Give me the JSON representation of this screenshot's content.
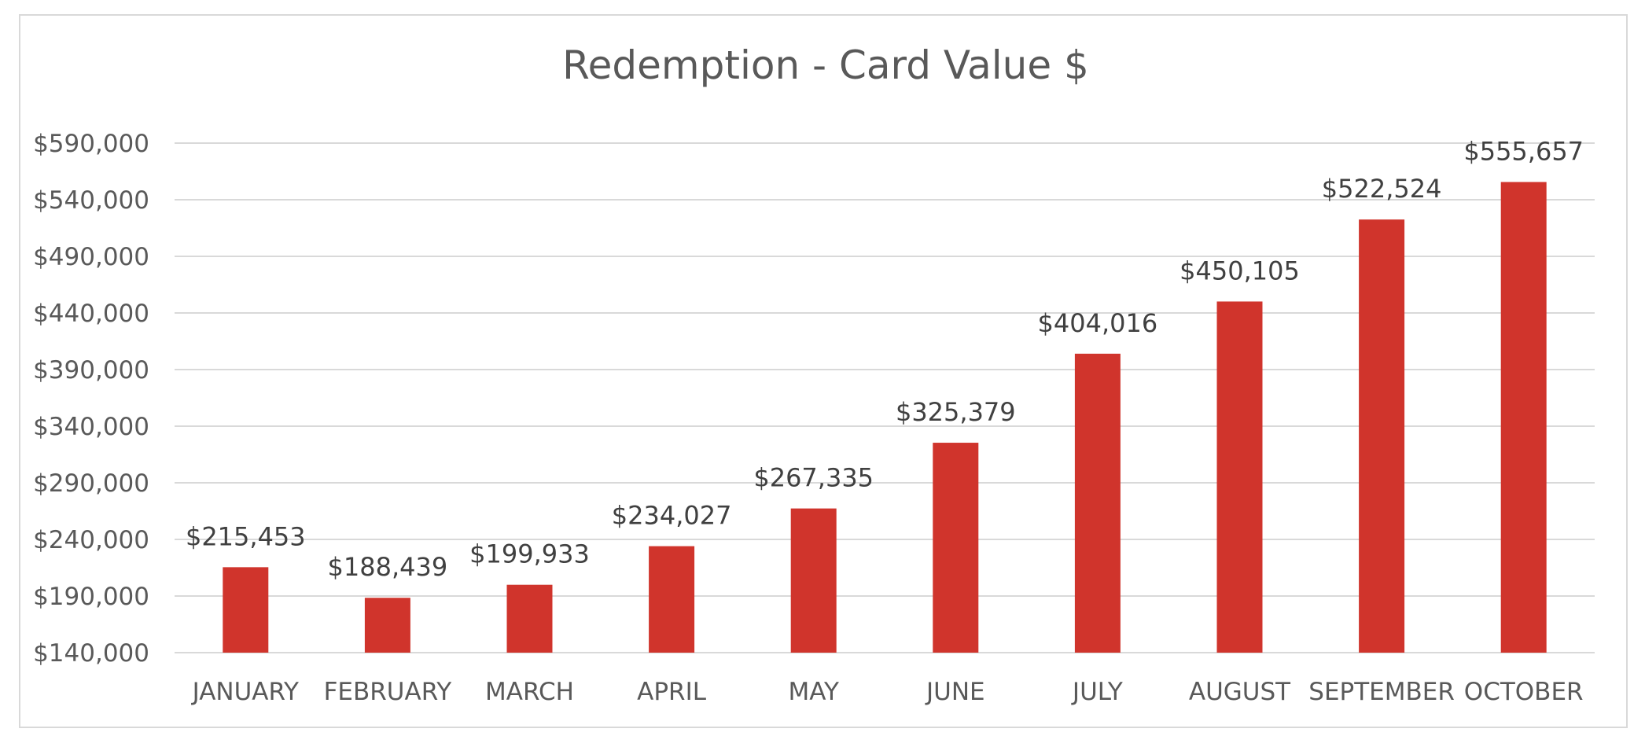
{
  "chart_data": {
    "type": "bar",
    "title": "Redemption - Card Value $",
    "xlabel": "",
    "ylabel": "",
    "categories": [
      "JANUARY",
      "FEBRUARY",
      "MARCH",
      "APRIL",
      "MAY",
      "JUNE",
      "JULY",
      "AUGUST",
      "SEPTEMBER",
      "OCTOBER"
    ],
    "values": [
      215453,
      188439,
      199933,
      234027,
      267335,
      325379,
      404016,
      450105,
      522524,
      555657
    ],
    "data_labels": [
      "$215,453",
      "$188,439",
      "$199,933",
      "$234,027",
      "$267,335",
      "$325,379",
      "$404,016",
      "$450,105",
      "$522,524",
      "$555,657"
    ],
    "ylim": [
      140000,
      590000
    ],
    "yticks": [
      140000,
      190000,
      240000,
      290000,
      340000,
      390000,
      440000,
      490000,
      540000,
      590000
    ],
    "ytick_labels": [
      "$140,000",
      "$190,000",
      "$240,000",
      "$290,000",
      "$340,000",
      "$390,000",
      "$440,000",
      "$490,000",
      "$540,000",
      "$590,000"
    ],
    "grid": true,
    "legend": "none",
    "bar_color": "#d0342c",
    "grid_color": "#d9d9d9",
    "text_color": "#595959"
  }
}
